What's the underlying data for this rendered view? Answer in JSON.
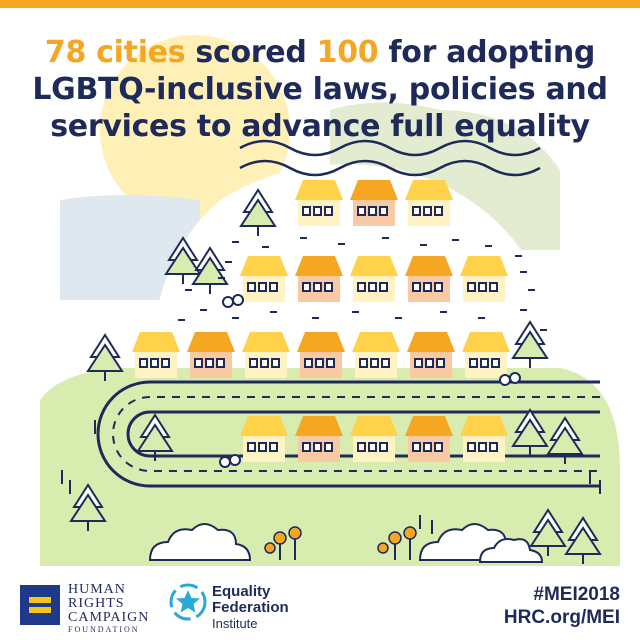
{
  "headline": {
    "count_highlight": "78 cities",
    "part1": " scored ",
    "score_highlight": "100",
    "part2": " for adopting",
    "line2": "LGBTQ-inclusive laws, policies and",
    "line3": "services to advance full equality"
  },
  "footer": {
    "hrc": {
      "line1": "HUMAN",
      "line2": "RIGHTS",
      "line3": "CAMPAIGN",
      "line4": "FOUNDATION"
    },
    "efi": {
      "line1": "Equality",
      "line2": "Federation",
      "line3": "Institute"
    },
    "hashtag": "#MEI2018",
    "url": "HRC.org/MEI"
  },
  "colors": {
    "navy": "#1e2a5a",
    "orange": "#f5a623",
    "yellow": "#ffd24a",
    "peach": "#f9c9a3",
    "light_green": "#d9ecb0",
    "light_blue": "#dfe8ef"
  }
}
